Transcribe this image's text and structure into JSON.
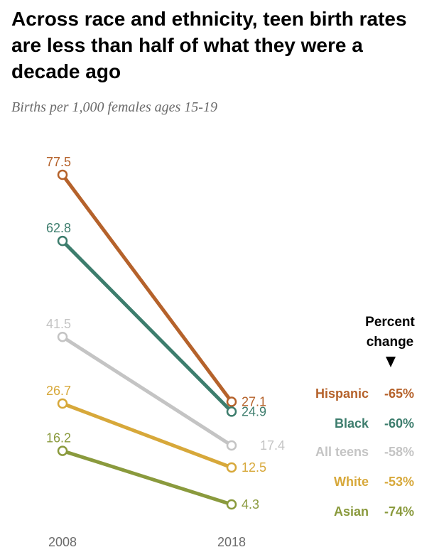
{
  "title": "Across race and ethnicity, teen birth rates are less than half of what they were a decade ago",
  "subtitle": "Births per 1,000 females ages 15-19",
  "chart_data": {
    "type": "line",
    "title": "Across race and ethnicity, teen birth rates are less than half of what they were a decade ago",
    "subtitle": "Births per 1,000 females ages 15-19",
    "x": [
      "2008",
      "2018"
    ],
    "ylim": [
      4.3,
      77.5
    ],
    "grid": false,
    "legend_header": [
      "Percent",
      "change"
    ],
    "legend_placement": "right",
    "series": [
      {
        "name": "Hispanic",
        "values": [
          77.5,
          27.1
        ],
        "labels": [
          "77.5",
          "27.1"
        ],
        "change": "-65%",
        "color": "#b5622b"
      },
      {
        "name": "Black",
        "values": [
          62.8,
          24.9
        ],
        "labels": [
          "62.8",
          "24.9"
        ],
        "change": "-60%",
        "color": "#3d7d6d"
      },
      {
        "name": "All teens",
        "values": [
          41.5,
          17.4
        ],
        "labels": [
          "41.5",
          "17.4"
        ],
        "change": "-58%",
        "color": "#c4c4c4"
      },
      {
        "name": "White",
        "values": [
          26.7,
          12.5
        ],
        "labels": [
          "26.7",
          "12.5"
        ],
        "change": "-53%",
        "color": "#d7a83a"
      },
      {
        "name": "Asian",
        "values": [
          16.2,
          4.3
        ],
        "labels": [
          "16.2",
          "4.3"
        ],
        "change": "-74%",
        "color": "#8a9a3d"
      }
    ]
  }
}
